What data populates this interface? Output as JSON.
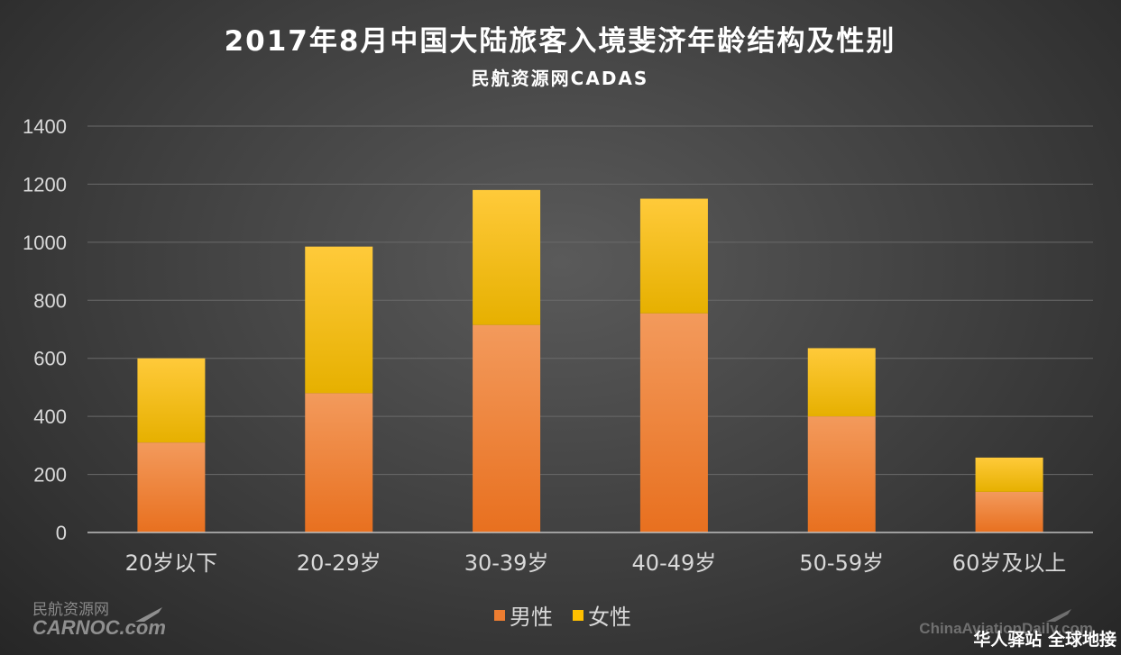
{
  "chart_data": {
    "type": "bar",
    "stacked": true,
    "title": "2017年8月中国大陆旅客入境斐济年龄结构及性别",
    "subtitle": "民航资源网CADAS",
    "categories": [
      "20岁以下",
      "20-29岁",
      "30-39岁",
      "40-49岁",
      "50-59岁",
      "60岁及以上"
    ],
    "series": [
      {
        "name": "男性",
        "values": [
          310,
          480,
          715,
          755,
          400,
          140
        ],
        "color": "#ed7d31"
      },
      {
        "name": "女性",
        "values": [
          290,
          505,
          465,
          395,
          235,
          118
        ],
        "color": "#ffc000"
      }
    ],
    "ylim": [
      0,
      1400
    ],
    "yticks": [
      0,
      200,
      400,
      600,
      800,
      1000,
      1200,
      1400
    ],
    "grid": true,
    "legend": "bottom"
  },
  "watermarks": {
    "left_cn": "民航资源网",
    "left_logo": "CARNOC.com",
    "right_logo": "ChinaAviationDaily.com",
    "right_cn": "华人驿站 全球地接"
  }
}
